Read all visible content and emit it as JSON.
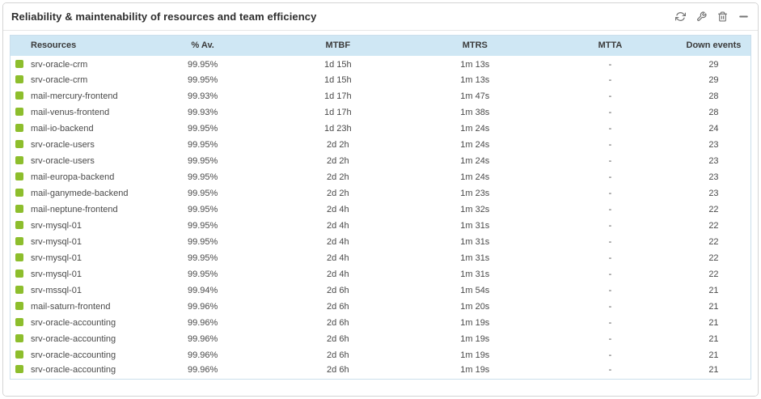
{
  "widget": {
    "title": "Reliability & maintenability of resources and team efficiency",
    "toolbar": [
      {
        "name": "refresh",
        "icon": "refresh-icon"
      },
      {
        "name": "configure",
        "icon": "wrench-icon"
      },
      {
        "name": "delete",
        "icon": "trash-icon"
      },
      {
        "name": "collapse",
        "icon": "minus-icon"
      }
    ]
  },
  "colors": {
    "status_ok": "#8dbe2d",
    "header_bg": "#cfe7f4",
    "table_border": "#cbdfec"
  },
  "table": {
    "columns": [
      "Resources",
      "% Av.",
      "MTBF",
      "MTRS",
      "MTTA",
      "Down events"
    ],
    "rows": [
      {
        "resource": "srv-oracle-crm",
        "availability": "99.95%",
        "mtbf": "1d 15h",
        "mtrs": "1m 13s",
        "mtta": "-",
        "down_events": "29"
      },
      {
        "resource": "srv-oracle-crm",
        "availability": "99.95%",
        "mtbf": "1d 15h",
        "mtrs": "1m 13s",
        "mtta": "-",
        "down_events": "29"
      },
      {
        "resource": "mail-mercury-frontend",
        "availability": "99.93%",
        "mtbf": "1d 17h",
        "mtrs": "1m 47s",
        "mtta": "-",
        "down_events": "28"
      },
      {
        "resource": "mail-venus-frontend",
        "availability": "99.93%",
        "mtbf": "1d 17h",
        "mtrs": "1m 38s",
        "mtta": "-",
        "down_events": "28"
      },
      {
        "resource": "mail-io-backend",
        "availability": "99.95%",
        "mtbf": "1d 23h",
        "mtrs": "1m 24s",
        "mtta": "-",
        "down_events": "24"
      },
      {
        "resource": "srv-oracle-users",
        "availability": "99.95%",
        "mtbf": "2d 2h",
        "mtrs": "1m 24s",
        "mtta": "-",
        "down_events": "23"
      },
      {
        "resource": "srv-oracle-users",
        "availability": "99.95%",
        "mtbf": "2d 2h",
        "mtrs": "1m 24s",
        "mtta": "-",
        "down_events": "23"
      },
      {
        "resource": "mail-europa-backend",
        "availability": "99.95%",
        "mtbf": "2d 2h",
        "mtrs": "1m 24s",
        "mtta": "-",
        "down_events": "23"
      },
      {
        "resource": "mail-ganymede-backend",
        "availability": "99.95%",
        "mtbf": "2d 2h",
        "mtrs": "1m 23s",
        "mtta": "-",
        "down_events": "23"
      },
      {
        "resource": "mail-neptune-frontend",
        "availability": "99.95%",
        "mtbf": "2d 4h",
        "mtrs": "1m 32s",
        "mtta": "-",
        "down_events": "22"
      },
      {
        "resource": "srv-mysql-01",
        "availability": "99.95%",
        "mtbf": "2d 4h",
        "mtrs": "1m 31s",
        "mtta": "-",
        "down_events": "22"
      },
      {
        "resource": "srv-mysql-01",
        "availability": "99.95%",
        "mtbf": "2d 4h",
        "mtrs": "1m 31s",
        "mtta": "-",
        "down_events": "22"
      },
      {
        "resource": "srv-mysql-01",
        "availability": "99.95%",
        "mtbf": "2d 4h",
        "mtrs": "1m 31s",
        "mtta": "-",
        "down_events": "22"
      },
      {
        "resource": "srv-mysql-01",
        "availability": "99.95%",
        "mtbf": "2d 4h",
        "mtrs": "1m 31s",
        "mtta": "-",
        "down_events": "22"
      },
      {
        "resource": "srv-mssql-01",
        "availability": "99.94%",
        "mtbf": "2d 6h",
        "mtrs": "1m 54s",
        "mtta": "-",
        "down_events": "21"
      },
      {
        "resource": "mail-saturn-frontend",
        "availability": "99.96%",
        "mtbf": "2d 6h",
        "mtrs": "1m 20s",
        "mtta": "-",
        "down_events": "21"
      },
      {
        "resource": "srv-oracle-accounting",
        "availability": "99.96%",
        "mtbf": "2d 6h",
        "mtrs": "1m 19s",
        "mtta": "-",
        "down_events": "21"
      },
      {
        "resource": "srv-oracle-accounting",
        "availability": "99.96%",
        "mtbf": "2d 6h",
        "mtrs": "1m 19s",
        "mtta": "-",
        "down_events": "21"
      },
      {
        "resource": "srv-oracle-accounting",
        "availability": "99.96%",
        "mtbf": "2d 6h",
        "mtrs": "1m 19s",
        "mtta": "-",
        "down_events": "21"
      },
      {
        "resource": "srv-oracle-accounting",
        "availability": "99.96%",
        "mtbf": "2d 6h",
        "mtrs": "1m 19s",
        "mtta": "-",
        "down_events": "21"
      }
    ]
  }
}
